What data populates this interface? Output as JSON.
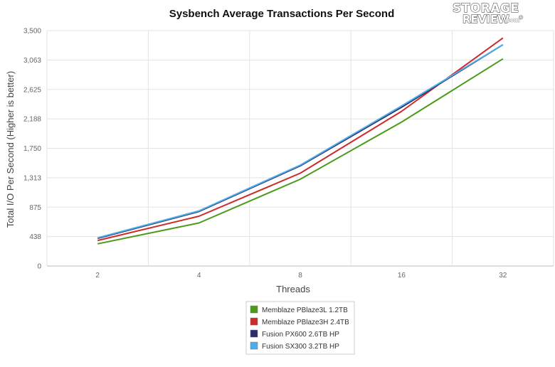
{
  "logo": {
    "line1": "STORAGE",
    "line2": "REVIEW",
    "suffix": ".com",
    "mark": "®"
  },
  "chart_data": {
    "type": "line",
    "title": "Sysbench Average Transactions Per Second",
    "xlabel": "Threads",
    "ylabel": "Total I/O Per Second (Higher is better)",
    "categories": [
      "2",
      "4",
      "8",
      "16",
      "32"
    ],
    "yticks": [
      "0",
      "438",
      "875",
      "1,313",
      "1,750",
      "2,188",
      "2,625",
      "3,063",
      "3,500"
    ],
    "ylim": [
      0,
      3500
    ],
    "grid": true,
    "legend_position": "bottom-center",
    "series": [
      {
        "name": "Memblaze PBlaze3L 1.2TB",
        "color": "#4c9a1c",
        "values": [
          330,
          640,
          1290,
          2140,
          3080
        ]
      },
      {
        "name": "Memblaze PBlaze3H 2.4TB",
        "color": "#cc2b2b",
        "values": [
          380,
          740,
          1380,
          2300,
          3390
        ]
      },
      {
        "name": "Fusion PX600 2.6TB HP",
        "color": "#2b2b6e",
        "values": [
          410,
          810,
          1490,
          2360,
          3290
        ]
      },
      {
        "name": "Fusion SX300 3.2TB HP",
        "color": "#4faee8",
        "values": [
          420,
          820,
          1500,
          2380,
          3290
        ]
      }
    ]
  }
}
